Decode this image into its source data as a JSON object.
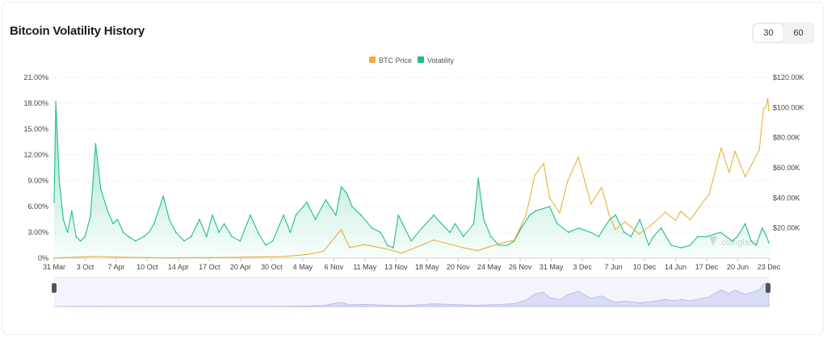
{
  "header": {
    "title": "Bitcoin Volatility History",
    "periods": [
      "30",
      "60"
    ],
    "active_period": "30"
  },
  "watermark": "coinglass",
  "colors": {
    "btc_price": "#e8b23c",
    "volatility": "#1fbf86",
    "navigator_fill": "#d9dcf7",
    "navigator_line": "#a9aedb"
  },
  "chart_data": {
    "type": "area",
    "title": "Bitcoin Volatility History",
    "legend": {
      "position": "top-center",
      "items": [
        "BTC Price",
        "Volatility"
      ]
    },
    "x_tick_labels": [
      "31 Mar",
      "3 Oct",
      "7 Apr",
      "10 Oct",
      "14 Apr",
      "17 Oct",
      "20 Apr",
      "30 Oct",
      "4 May",
      "6 Nov",
      "11 May",
      "13 Nov",
      "18 May",
      "20 Nov",
      "24 May",
      "26 Nov",
      "31 May",
      "3 Dec",
      "7 Jun",
      "10 Dec",
      "14 Jun",
      "17 Dec",
      "20 Jun",
      "23 Dec"
    ],
    "x_range": [
      "2013-03-31",
      "2024-12-25"
    ],
    "y_left": {
      "label": "Volatility",
      "ticks": [
        "0%",
        "3.00%",
        "6.00%",
        "9.00%",
        "12.00%",
        "15.00%",
        "18.00%",
        "21.00%"
      ],
      "range": [
        0,
        21
      ]
    },
    "y_right": {
      "label": "BTC Price",
      "ticks": [
        "$20.00K",
        "$40.00K",
        "$60.00K",
        "$80.00K",
        "$100.00K",
        "$120.00K"
      ],
      "range": [
        0,
        120000
      ]
    },
    "grid": true,
    "series": [
      {
        "name": "Volatility",
        "axis": "left",
        "unit": "%",
        "points": [
          [
            "2013-03-31",
            6.5
          ],
          [
            "2013-04-10",
            18.2
          ],
          [
            "2013-05-01",
            9.0
          ],
          [
            "2013-05-25",
            4.5
          ],
          [
            "2013-06-20",
            3.0
          ],
          [
            "2013-07-15",
            5.5
          ],
          [
            "2013-08-10",
            2.5
          ],
          [
            "2013-09-05",
            2.0
          ],
          [
            "2013-10-03",
            2.5
          ],
          [
            "2013-11-05",
            5.0
          ],
          [
            "2013-12-05",
            13.3
          ],
          [
            "2014-01-05",
            8.0
          ],
          [
            "2014-02-15",
            5.5
          ],
          [
            "2014-03-20",
            4.0
          ],
          [
            "2014-04-15",
            4.5
          ],
          [
            "2014-05-20",
            3.0
          ],
          [
            "2014-06-20",
            2.5
          ],
          [
            "2014-08-01",
            2.0
          ],
          [
            "2014-09-20",
            2.5
          ],
          [
            "2014-10-20",
            3.0
          ],
          [
            "2014-11-20",
            4.0
          ],
          [
            "2015-01-15",
            7.2
          ],
          [
            "2015-02-20",
            4.5
          ],
          [
            "2015-04-01",
            3.0
          ],
          [
            "2015-05-20",
            2.0
          ],
          [
            "2015-07-01",
            2.5
          ],
          [
            "2015-08-20",
            4.5
          ],
          [
            "2015-10-01",
            2.5
          ],
          [
            "2015-11-05",
            5.0
          ],
          [
            "2015-12-15",
            3.0
          ],
          [
            "2016-01-15",
            4.0
          ],
          [
            "2016-03-01",
            2.5
          ],
          [
            "2016-04-20",
            2.0
          ],
          [
            "2016-06-20",
            5.0
          ],
          [
            "2016-08-05",
            3.0
          ],
          [
            "2016-09-20",
            1.5
          ],
          [
            "2016-11-01",
            2.0
          ],
          [
            "2017-01-05",
            5.0
          ],
          [
            "2017-02-15",
            3.0
          ],
          [
            "2017-03-20",
            5.0
          ],
          [
            "2017-05-25",
            6.5
          ],
          [
            "2017-07-15",
            4.5
          ],
          [
            "2017-09-15",
            6.8
          ],
          [
            "2017-11-15",
            5.0
          ],
          [
            "2017-12-18",
            8.3
          ],
          [
            "2018-01-20",
            7.5
          ],
          [
            "2018-02-20",
            6.0
          ],
          [
            "2018-04-15",
            5.0
          ],
          [
            "2018-06-20",
            3.5
          ],
          [
            "2018-08-10",
            3.0
          ],
          [
            "2018-09-20",
            1.5
          ],
          [
            "2018-10-25",
            1.2
          ],
          [
            "2018-11-25",
            5.0
          ],
          [
            "2018-12-20",
            4.0
          ],
          [
            "2019-02-10",
            2.0
          ],
          [
            "2019-04-15",
            3.5
          ],
          [
            "2019-06-25",
            5.0
          ],
          [
            "2019-08-10",
            4.0
          ],
          [
            "2019-09-30",
            3.0
          ],
          [
            "2019-11-01",
            4.0
          ],
          [
            "2019-12-20",
            2.5
          ],
          [
            "2020-02-20",
            4.0
          ],
          [
            "2020-03-18",
            9.3
          ],
          [
            "2020-04-20",
            4.5
          ],
          [
            "2020-06-01",
            2.5
          ],
          [
            "2020-07-20",
            1.5
          ],
          [
            "2020-09-10",
            1.5
          ],
          [
            "2020-10-20",
            2.0
          ],
          [
            "2020-12-01",
            3.5
          ],
          [
            "2021-01-20",
            5.0
          ],
          [
            "2021-02-25",
            5.5
          ],
          [
            "2021-05-20",
            6.0
          ],
          [
            "2021-07-05",
            4.0
          ],
          [
            "2021-09-10",
            3.0
          ],
          [
            "2021-11-10",
            3.5
          ],
          [
            "2022-01-20",
            3.0
          ],
          [
            "2022-03-10",
            2.5
          ],
          [
            "2022-05-15",
            4.5
          ],
          [
            "2022-06-20",
            5.0
          ],
          [
            "2022-08-10",
            3.0
          ],
          [
            "2022-09-20",
            2.5
          ],
          [
            "2022-11-12",
            4.5
          ],
          [
            "2023-01-05",
            1.5
          ],
          [
            "2023-02-01",
            2.5
          ],
          [
            "2023-03-20",
            3.5
          ],
          [
            "2023-05-20",
            1.5
          ],
          [
            "2023-07-20",
            1.2
          ],
          [
            "2023-09-10",
            1.5
          ],
          [
            "2023-10-25",
            2.5
          ],
          [
            "2023-12-20",
            2.5
          ],
          [
            "2024-03-10",
            3.0
          ],
          [
            "2024-05-20",
            2.0
          ],
          [
            "2024-06-20",
            2.5
          ],
          [
            "2024-08-05",
            4.0
          ],
          [
            "2024-09-10",
            2.0
          ],
          [
            "2024-10-10",
            1.5
          ],
          [
            "2024-11-15",
            3.5
          ],
          [
            "2024-12-05",
            2.8
          ],
          [
            "2024-12-25",
            1.8
          ]
        ]
      },
      {
        "name": "BTC Price",
        "axis": "right",
        "unit": "USD",
        "points": [
          [
            "2013-03-31",
            100
          ],
          [
            "2013-11-30",
            1100
          ],
          [
            "2014-06-01",
            600
          ],
          [
            "2015-01-15",
            200
          ],
          [
            "2016-01-01",
            430
          ],
          [
            "2017-01-01",
            1000
          ],
          [
            "2017-06-01",
            2500
          ],
          [
            "2017-09-01",
            4500
          ],
          [
            "2017-12-17",
            19000
          ],
          [
            "2018-02-05",
            7000
          ],
          [
            "2018-05-01",
            9000
          ],
          [
            "2018-09-01",
            6500
          ],
          [
            "2018-12-15",
            3300
          ],
          [
            "2019-06-26",
            12000
          ],
          [
            "2019-12-15",
            7000
          ],
          [
            "2020-03-12",
            5000
          ],
          [
            "2020-07-20",
            9500
          ],
          [
            "2020-10-20",
            12000
          ],
          [
            "2020-12-31",
            29000
          ],
          [
            "2021-02-20",
            55000
          ],
          [
            "2021-04-14",
            63000
          ],
          [
            "2021-05-20",
            40000
          ],
          [
            "2021-07-20",
            30000
          ],
          [
            "2021-09-05",
            51000
          ],
          [
            "2021-11-08",
            67000
          ],
          [
            "2022-01-24",
            36000
          ],
          [
            "2022-03-28",
            47000
          ],
          [
            "2022-05-12",
            29000
          ],
          [
            "2022-06-18",
            19000
          ],
          [
            "2022-08-15",
            24000
          ],
          [
            "2022-11-09",
            16000
          ],
          [
            "2023-01-31",
            23000
          ],
          [
            "2023-04-14",
            30500
          ],
          [
            "2023-06-15",
            25000
          ],
          [
            "2023-07-15",
            31000
          ],
          [
            "2023-09-11",
            25500
          ],
          [
            "2023-12-01",
            38000
          ],
          [
            "2024-01-01",
            42000
          ],
          [
            "2024-03-14",
            73000
          ],
          [
            "2024-05-01",
            57000
          ],
          [
            "2024-06-05",
            71000
          ],
          [
            "2024-08-05",
            54000
          ],
          [
            "2024-10-29",
            72000
          ],
          [
            "2024-11-22",
            99000
          ],
          [
            "2024-12-05",
            100000
          ],
          [
            "2024-12-15",
            104000
          ],
          [
            "2024-12-18",
            106000
          ],
          [
            "2024-12-25",
            98000
          ]
        ]
      }
    ]
  }
}
